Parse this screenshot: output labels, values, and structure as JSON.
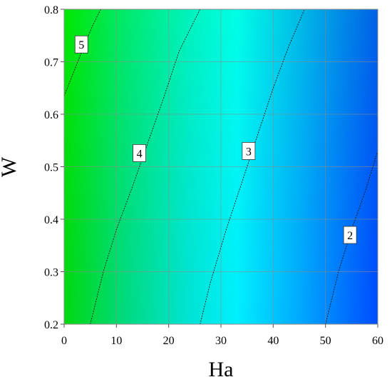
{
  "chart_data": {
    "type": "heatmap",
    "subtype": "filled-contour",
    "title": "",
    "xlabel": "Ha",
    "ylabel": "W",
    "xlim": [
      0,
      60
    ],
    "ylim": [
      0.2,
      0.8
    ],
    "xticks": [
      "0",
      "10",
      "20",
      "30",
      "40",
      "50",
      "60"
    ],
    "yticks": [
      "0.2",
      "0.3",
      "0.4",
      "0.5",
      "0.6",
      "0.7",
      "0.8"
    ],
    "grid": true,
    "colormap": {
      "high": "#00ee00",
      "mid": "#00ffff",
      "low": "#0055ff"
    },
    "contours": [
      {
        "level": "5",
        "points": [
          [
            0,
            0.635
          ],
          [
            2,
            0.685
          ],
          [
            4,
            0.735
          ],
          [
            5.5,
            0.77
          ],
          [
            7,
            0.8
          ]
        ],
        "label_at": [
          3.3,
          0.733
        ]
      },
      {
        "level": "4",
        "points": [
          [
            5,
            0.2
          ],
          [
            7.5,
            0.3
          ],
          [
            10,
            0.38
          ],
          [
            13,
            0.46
          ],
          [
            16,
            0.545
          ],
          [
            19,
            0.63
          ],
          [
            22,
            0.72
          ],
          [
            26,
            0.8
          ]
        ],
        "label_at": [
          14.4,
          0.526
        ]
      },
      {
        "level": "3",
        "points": [
          [
            26,
            0.2
          ],
          [
            28,
            0.28
          ],
          [
            31,
            0.38
          ],
          [
            34,
            0.47
          ],
          [
            37,
            0.56
          ],
          [
            40,
            0.65
          ],
          [
            43,
            0.73
          ],
          [
            46,
            0.8
          ]
        ],
        "label_at": [
          35.3,
          0.53
        ]
      },
      {
        "level": "2",
        "points": [
          [
            50,
            0.2
          ],
          [
            52.5,
            0.3
          ],
          [
            55,
            0.38
          ],
          [
            57.5,
            0.45
          ],
          [
            60,
            0.53
          ]
        ],
        "label_at": [
          54.7,
          0.37
        ]
      }
    ]
  }
}
